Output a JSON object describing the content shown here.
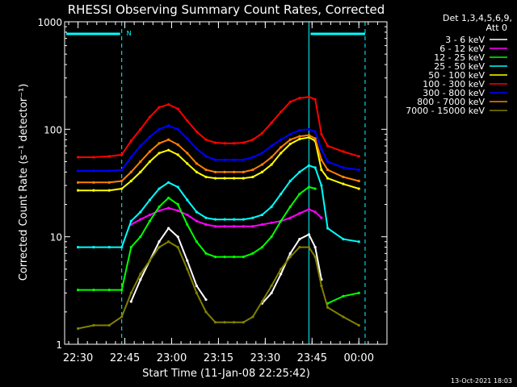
{
  "chart_data": {
    "type": "line",
    "title": "RHESSI Observing Summary Count Rates, Corrected",
    "xlabel": "Start Time (11-Jan-08 22:25:42)",
    "ylabel": "Corrected Count Rate (s⁻¹ detector⁻¹)",
    "yscale": "log",
    "ylim": [
      1,
      1000
    ],
    "xlim": [
      "22:25:42",
      "00:09:00"
    ],
    "xticks": [
      "22:30",
      "22:45",
      "23:00",
      "23:15",
      "23:30",
      "23:45",
      "00:00"
    ],
    "yticks": [
      "1",
      "10",
      "100",
      "1000"
    ],
    "legend_header": [
      "Det 1,3,4,5,6,9,",
      "Att 0"
    ],
    "legend_position": "top-right",
    "footer": "13-Oct-2021 18:03",
    "annotation": "N",
    "x": [
      "22:30",
      "22:35",
      "22:40",
      "22:44",
      "22:47",
      "22:50",
      "22:53",
      "22:56",
      "22:59",
      "23:02",
      "23:05",
      "23:08",
      "23:11",
      "23:14",
      "23:17",
      "23:20",
      "23:23",
      "23:26",
      "23:29",
      "23:32",
      "23:35",
      "23:38",
      "23:41",
      "23:44",
      "23:46",
      "23:48",
      "23:50",
      "23:55",
      "00:00"
    ],
    "series": [
      {
        "name": "3 - 6 keV",
        "color": "#ffffff",
        "values": [
          null,
          null,
          null,
          null,
          2.5,
          4,
          6,
          9,
          12,
          10,
          6,
          3.5,
          2.6,
          null,
          null,
          null,
          null,
          null,
          2.4,
          3,
          4.5,
          7,
          9.5,
          10.5,
          8,
          4,
          null,
          null,
          null
        ]
      },
      {
        "name": "6 - 12 keV",
        "color": "#ff00ff",
        "values": [
          null,
          null,
          null,
          null,
          13,
          14.5,
          16,
          17.5,
          18.5,
          17.5,
          16,
          14,
          13,
          12.5,
          12.5,
          12.5,
          12.5,
          12.5,
          13,
          13.5,
          14,
          15,
          16.5,
          18,
          17,
          15,
          null,
          null,
          null
        ]
      },
      {
        "name": "12 - 25 keV",
        "color": "#00ff00",
        "values": [
          3.2,
          3.2,
          3.2,
          3.2,
          8,
          10,
          14,
          19,
          23,
          20,
          13,
          9,
          7,
          6.5,
          6.5,
          6.5,
          6.5,
          7,
          8,
          10,
          14,
          19,
          25,
          29,
          28,
          null,
          2.4,
          2.8,
          3
        ]
      },
      {
        "name": "25 - 50 keV",
        "color": "#00ffff",
        "values": [
          8,
          8,
          8,
          8,
          14,
          17,
          22,
          28,
          32,
          29,
          22,
          17,
          15,
          14.5,
          14.5,
          14.5,
          14.5,
          15,
          16,
          19,
          25,
          33,
          40,
          46,
          44,
          30,
          12,
          9.5,
          9
        ]
      },
      {
        "name": "50 - 100 keV",
        "color": "#ffff00",
        "values": [
          27,
          27,
          27,
          28,
          33,
          40,
          50,
          60,
          64,
          58,
          48,
          40,
          36,
          35,
          35,
          35,
          35,
          36,
          40,
          47,
          60,
          73,
          81,
          84,
          78,
          42,
          35,
          31,
          28
        ]
      },
      {
        "name": "100 - 300 keV",
        "color": "#ff0000",
        "values": [
          55,
          55,
          56,
          58,
          78,
          100,
          130,
          160,
          170,
          155,
          120,
          95,
          80,
          75,
          74,
          74,
          75,
          80,
          92,
          115,
          145,
          180,
          195,
          200,
          190,
          90,
          70,
          62,
          56
        ]
      },
      {
        "name": "300 - 800 keV",
        "color": "#0000ff",
        "values": [
          41,
          41,
          41,
          42,
          55,
          70,
          85,
          100,
          108,
          100,
          82,
          66,
          56,
          52,
          52,
          52,
          52,
          55,
          60,
          70,
          80,
          90,
          98,
          100,
          95,
          65,
          50,
          44,
          42
        ]
      },
      {
        "name": "800 - 7000 keV",
        "color": "#ff8000",
        "values": [
          32,
          32,
          32,
          33,
          40,
          50,
          62,
          74,
          80,
          72,
          60,
          48,
          42,
          40,
          40,
          40,
          40,
          42,
          47,
          55,
          68,
          80,
          86,
          88,
          82,
          52,
          42,
          36,
          33
        ]
      },
      {
        "name": "7000 - 15000 keV",
        "color": "#808000",
        "values": [
          1.4,
          1.5,
          1.5,
          1.8,
          3,
          4.5,
          6,
          8,
          9,
          8,
          5,
          3,
          2,
          1.6,
          1.6,
          1.6,
          1.6,
          1.8,
          2.5,
          3.5,
          5,
          6.5,
          8,
          8,
          6.5,
          3.5,
          2.2,
          1.8,
          1.5
        ]
      }
    ]
  }
}
